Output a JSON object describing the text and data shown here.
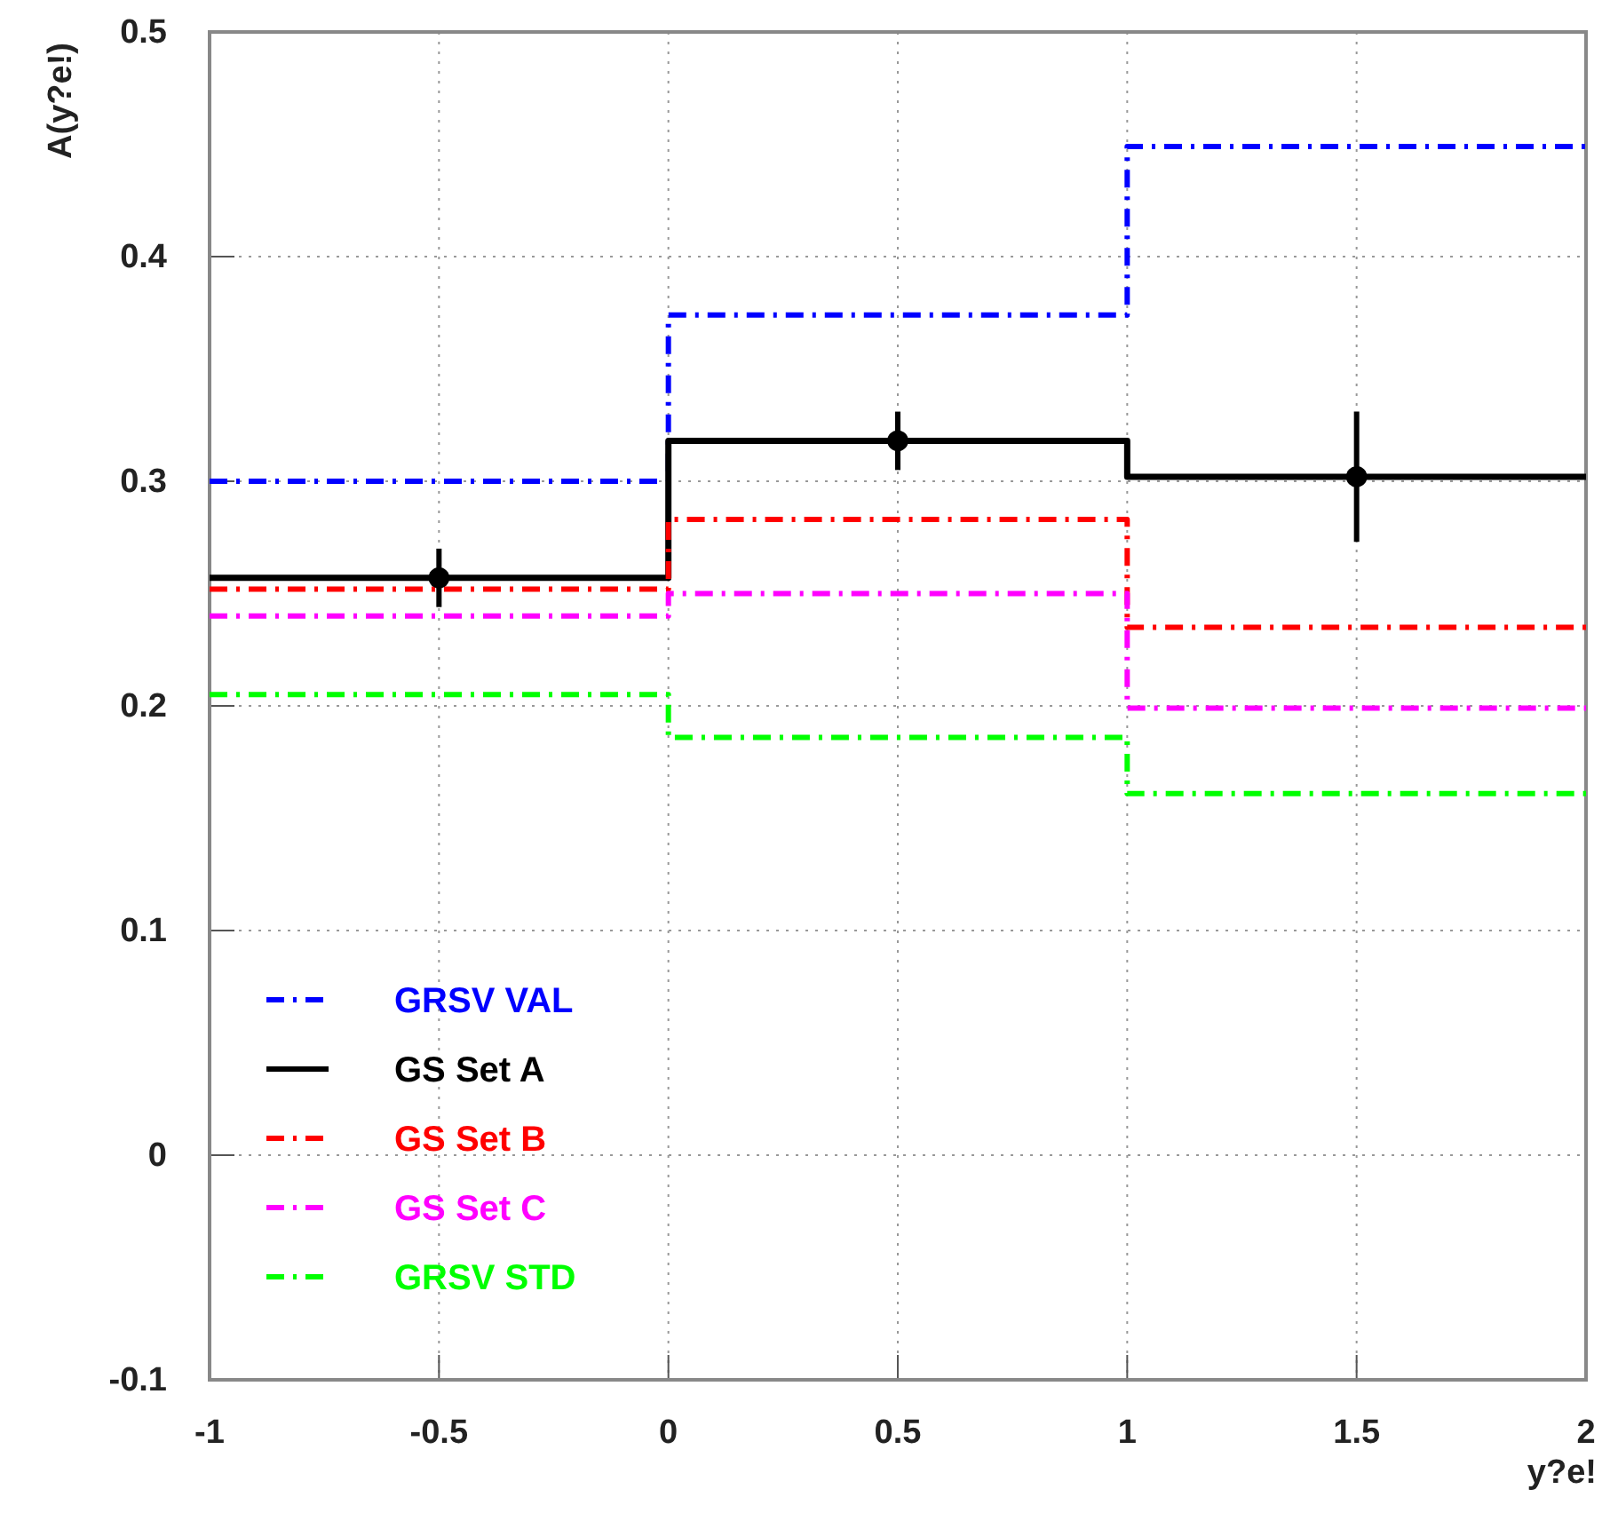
{
  "chart_data": {
    "type": "step",
    "xlabel": "y?e!",
    "ylabel": "A(y?e!)",
    "xlim": [
      -1,
      2
    ],
    "xticks": [
      -1,
      -0.5,
      0,
      0.5,
      1,
      1.5,
      2
    ],
    "ylim": [
      -0.1,
      0.5
    ],
    "yticks": [
      -0.1,
      0,
      0.1,
      0.2,
      0.3,
      0.4,
      0.5
    ],
    "grid": true,
    "legend": "bottom left",
    "series": [
      {
        "name": "GRSV VAL",
        "color": "#0000ff",
        "line_style": "dashdot",
        "x": [
          -1,
          0,
          1,
          2
        ],
        "values": [
          0.3,
          0.374,
          0.449,
          0.449
        ]
      },
      {
        "name": "GS Set A",
        "color": "#000000",
        "line_style": "solid",
        "x": [
          -1,
          0,
          1,
          2
        ],
        "values": [
          0.257,
          0.318,
          0.302,
          0.302
        ]
      },
      {
        "name": "GS Set B",
        "color": "#ff0000",
        "line_style": "dashdot",
        "x": [
          -1,
          0,
          1,
          2
        ],
        "values": [
          0.252,
          0.283,
          0.235,
          0.235
        ]
      },
      {
        "name": "GS Set C",
        "color": "#ff00ff",
        "line_style": "dashdot",
        "x": [
          -1,
          0,
          1,
          2
        ],
        "values": [
          0.24,
          0.25,
          0.199,
          0.199
        ]
      },
      {
        "name": "GRSV STD",
        "color": "#00ff00",
        "line_style": "dashdot",
        "x": [
          -1,
          0,
          1,
          2
        ],
        "values": [
          0.205,
          0.186,
          0.161,
          0.161
        ]
      },
      {
        "type": "scatter",
        "color": "#000000",
        "marker": "circle",
        "x": [
          -0.5,
          0.5,
          1.5
        ],
        "values": [
          0.257,
          0.318,
          0.302
        ],
        "errors": [
          0.013,
          0.013,
          0.029
        ]
      }
    ]
  }
}
